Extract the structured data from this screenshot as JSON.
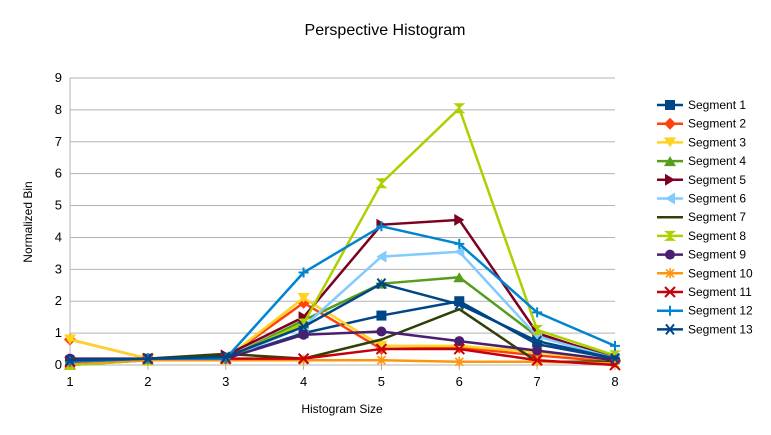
{
  "chart_data": {
    "type": "line",
    "title": "Perspective Histogram",
    "xlabel": "Histogram Size",
    "ylabel": "Normalized Bin",
    "x": [
      1,
      2,
      3,
      4,
      5,
      6,
      7,
      8
    ],
    "ylim": [
      0,
      9
    ],
    "yticks": [
      0,
      1,
      2,
      3,
      4,
      5,
      6,
      7,
      8,
      9
    ],
    "grid": "horizontal",
    "legend": "right",
    "series": [
      {
        "name": "Segment 1",
        "color": "#004586",
        "marker": "square",
        "values": [
          0.1,
          0.2,
          0.2,
          1.0,
          1.55,
          2.0,
          0.65,
          0.2
        ]
      },
      {
        "name": "Segment 2",
        "color": "#ff420e",
        "marker": "diamond",
        "values": [
          0.8,
          0.2,
          0.2,
          1.95,
          0.5,
          0.55,
          0.3,
          0.1
        ]
      },
      {
        "name": "Segment 3",
        "color": "#ffd320",
        "marker": "triangle-down",
        "values": [
          0.8,
          0.2,
          0.2,
          2.1,
          0.6,
          0.6,
          0.4,
          0.15
        ]
      },
      {
        "name": "Segment 4",
        "color": "#579d1c",
        "marker": "triangle-up",
        "values": [
          0.0,
          0.15,
          0.2,
          1.4,
          2.55,
          2.75,
          0.9,
          0.3
        ]
      },
      {
        "name": "Segment 5",
        "color": "#7e0021",
        "marker": "triangle-right",
        "values": [
          0.1,
          0.2,
          0.3,
          1.5,
          4.4,
          4.55,
          1.0,
          0.2
        ]
      },
      {
        "name": "Segment 6",
        "color": "#83caff",
        "marker": "triangle-left",
        "values": [
          0.1,
          0.2,
          0.2,
          1.2,
          3.4,
          3.55,
          0.9,
          0.2
        ]
      },
      {
        "name": "Segment 7",
        "color": "#314004",
        "marker": "bowtie",
        "values": [
          0.15,
          0.2,
          0.35,
          0.2,
          0.8,
          1.75,
          0.1,
          0.1
        ]
      },
      {
        "name": "Segment 8",
        "color": "#aecf00",
        "marker": "hourglass",
        "values": [
          0.0,
          0.15,
          0.2,
          1.3,
          5.7,
          8.05,
          1.1,
          0.3
        ]
      },
      {
        "name": "Segment 9",
        "color": "#4b1f6f",
        "marker": "circle",
        "values": [
          0.2,
          0.2,
          0.2,
          0.95,
          1.05,
          0.75,
          0.45,
          0.15
        ]
      },
      {
        "name": "Segment 10",
        "color": "#ff950e",
        "marker": "star",
        "values": [
          0.05,
          0.15,
          0.15,
          0.15,
          0.15,
          0.1,
          0.1,
          0.05
        ]
      },
      {
        "name": "Segment 11",
        "color": "#c5000b",
        "marker": "x",
        "values": [
          0.1,
          0.2,
          0.2,
          0.2,
          0.5,
          0.5,
          0.15,
          0.0
        ]
      },
      {
        "name": "Segment 12",
        "color": "#0084d1",
        "marker": "plus",
        "values": [
          0.1,
          0.2,
          0.2,
          2.9,
          4.35,
          3.8,
          1.65,
          0.6
        ]
      },
      {
        "name": "Segment 13",
        "color": "#004586",
        "marker": "asterisk",
        "values": [
          0.15,
          0.2,
          0.25,
          1.2,
          2.55,
          1.9,
          0.75,
          0.2
        ]
      }
    ]
  }
}
